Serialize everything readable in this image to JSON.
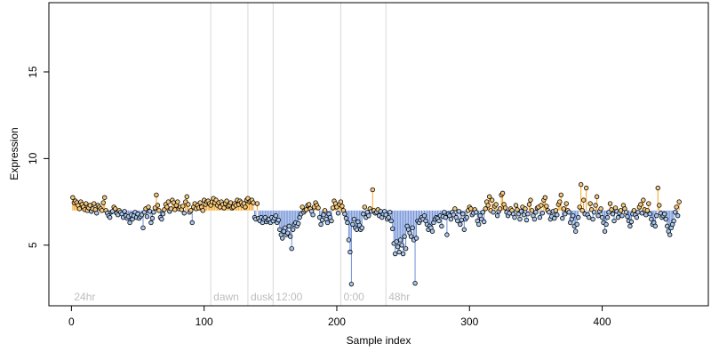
{
  "chart_data": {
    "type": "scatter",
    "title": "",
    "xlabel": "Sample index",
    "ylabel": "Expression",
    "xlim": [
      -17,
      480
    ],
    "ylim": [
      1.5,
      19.0
    ],
    "x_ticks": [
      0,
      100,
      200,
      300,
      400
    ],
    "y_ticks": [
      5,
      10,
      15
    ],
    "grid": false,
    "legend": "none",
    "baseline": 7.0,
    "colors": {
      "up_line": "#f5a623",
      "down_line": "#6f8fd6",
      "point_up": "#f7c97e",
      "point_down": "#a9c7ee",
      "point_edge": "#000000",
      "region_line": "#d9d9d9",
      "region_label": "#bdbdbd"
    },
    "regions": [
      {
        "x": 0,
        "label": "24hr"
      },
      {
        "x": 105,
        "label": "dawn"
      },
      {
        "x": 133,
        "label": "dusk"
      },
      {
        "x": 152,
        "label": "12:00"
      },
      {
        "x": 203,
        "label": "0:00"
      },
      {
        "x": 237,
        "label": "48hr"
      }
    ],
    "series": [
      {
        "values": [
          7.75,
          7.45,
          7.55,
          7.45,
          7.3,
          7.1,
          7.5,
          7.35,
          7.2,
          7.05,
          7.4,
          7.0,
          7.15,
          7.3,
          6.95,
          7.1,
          7.4,
          7.05,
          6.85,
          7.3,
          7.2,
          7.1,
          7.0,
          7.45,
          7.75,
          7.0,
          6.85,
          6.7,
          6.6,
          6.9,
          6.95,
          7.2,
          7.1,
          6.85,
          6.75,
          7.0,
          6.9,
          6.8,
          6.6,
          6.95,
          6.7,
          6.55,
          6.65,
          6.3,
          6.75,
          6.5,
          6.7,
          6.9,
          6.6,
          6.8,
          6.55,
          6.65,
          6.75,
          6.0,
          6.9,
          7.1,
          6.65,
          7.2,
          6.95,
          6.3,
          6.55,
          6.9,
          7.15,
          7.9,
          7.3,
          7.0,
          6.6,
          6.5,
          6.8,
          7.05,
          7.35,
          7.2,
          7.5,
          6.95,
          7.1,
          7.6,
          7.45,
          7.05,
          7.3,
          7.5,
          7.1,
          7.2,
          7.05,
          7.25,
          6.85,
          7.5,
          7.8,
          7.35,
          6.9,
          7.0,
          6.3,
          7.2,
          7.4,
          7.1,
          7.3,
          7.15,
          7.45,
          7.2,
          7.0,
          7.6,
          7.35,
          7.5,
          7.55,
          7.4,
          7.3,
          7.5,
          7.7,
          7.45,
          7.6,
          7.3,
          7.45,
          7.2,
          7.5,
          7.35,
          7.15,
          7.4,
          7.55,
          7.25,
          7.3,
          7.45,
          7.15,
          7.2,
          7.4,
          7.3,
          7.6,
          7.35,
          7.55,
          7.45,
          7.3,
          7.4,
          7.2,
          7.6,
          7.7,
          7.5,
          7.55,
          7.6,
          7.45,
          6.6,
          6.5,
          7.4,
          6.55,
          6.4,
          6.6,
          6.3,
          6.5,
          6.6,
          6.35,
          6.45,
          6.5,
          6.3,
          6.6,
          6.4,
          6.55,
          6.7,
          6.3,
          6.45,
          5.9,
          5.6,
          5.4,
          5.8,
          6.0,
          5.6,
          5.7,
          6.1,
          5.5,
          4.8,
          5.9,
          6.2,
          6.3,
          6.1,
          6.25,
          6.6,
          6.8,
          7.2,
          6.9,
          7.0,
          7.05,
          7.3,
          7.35,
          7.1,
          6.95,
          6.75,
          7.2,
          7.45,
          7.3,
          7.15,
          6.6,
          6.2,
          6.45,
          6.75,
          7.0,
          6.5,
          6.3,
          6.8,
          6.6,
          6.4,
          7.15,
          7.55,
          7.4,
          7.2,
          6.85,
          7.35,
          7.5,
          7.25,
          7.0,
          6.8,
          6.55,
          6.3,
          5.3,
          4.6,
          2.75,
          6.2,
          6.5,
          6.0,
          5.9,
          6.35,
          6.15,
          5.9,
          6.0,
          6.8,
          7.2,
          6.6,
          6.9,
          6.7,
          7.1,
          6.95,
          8.2,
          7.0,
          6.85,
          6.9,
          7.05,
          6.7,
          6.95,
          6.6,
          6.8,
          6.95,
          6.75,
          6.5,
          6.6,
          6.9,
          6.4,
          5.95,
          5.1,
          4.5,
          5.2,
          4.9,
          4.6,
          5.3,
          5.0,
          4.5,
          5.5,
          4.8,
          6.1,
          5.9,
          5.7,
          5.5,
          6.0,
          5.3,
          2.8,
          5.4,
          6.4,
          6.3,
          6.45,
          6.6,
          6.5,
          6.7,
          6.4,
          6.2,
          5.9,
          6.1,
          6.0,
          5.8,
          6.3,
          6.5,
          6.6,
          6.55,
          6.4,
          6.7,
          6.1,
          6.65,
          6.9,
          6.6,
          5.6,
          6.8,
          6.7,
          6.5,
          6.9,
          6.75,
          7.1,
          6.6,
          6.4,
          6.95,
          6.2,
          6.45,
          6.8,
          5.9,
          6.5,
          6.6,
          7.0,
          7.2,
          7.1,
          6.75,
          6.85,
          7.05,
          6.9,
          6.4,
          6.2,
          6.7,
          6.5,
          6.9,
          6.35,
          7.1,
          7.5,
          7.3,
          7.8,
          7.0,
          7.6,
          6.9,
          7.25,
          7.35,
          6.7,
          6.95,
          7.1,
          7.9,
          8.0,
          7.35,
          7.15,
          6.9,
          6.7,
          6.85,
          7.1,
          7.0,
          6.8,
          6.6,
          7.3,
          7.05,
          6.8,
          6.5,
          6.95,
          7.2,
          6.75,
          7.1,
          6.45,
          6.8,
          7.35,
          7.6,
          7.0,
          6.7,
          6.5,
          6.9,
          7.15,
          7.2,
          6.6,
          7.3,
          6.85,
          7.6,
          7.75,
          7.25,
          7.0,
          6.9,
          6.5,
          6.65,
          6.95,
          6.55,
          7.0,
          6.75,
          7.35,
          7.5,
          7.9,
          6.55,
          7.1,
          6.8,
          7.4,
          7.0,
          6.9,
          6.3,
          6.5,
          6.7,
          6.1,
          5.8,
          6.2,
          6.6,
          7.2,
          8.5,
          7.0,
          7.6,
          6.8,
          8.3,
          6.75,
          6.6,
          7.4,
          7.05,
          6.5,
          6.9,
          7.3,
          7.8,
          6.7,
          6.95,
          7.1,
          6.6,
          6.3,
          5.8,
          6.2,
          6.6,
          6.9,
          7.4,
          7.05,
          6.8,
          6.4,
          7.15,
          6.95,
          6.6,
          6.85,
          7.0,
          6.7,
          7.3,
          7.1,
          6.9,
          6.65,
          6.4,
          6.1,
          6.35,
          6.8,
          7.0,
          6.75,
          6.6,
          6.9,
          7.2,
          7.35,
          6.85,
          7.6,
          7.05,
          6.75,
          7.0,
          7.4,
          6.8,
          6.5,
          6.2,
          6.3,
          6.1,
          6.7,
          8.3,
          7.3,
          6.85,
          6.6,
          6.7,
          6.8,
          6.5,
          6.1,
          5.8,
          5.6,
          6.0,
          6.2,
          6.4,
          6.9,
          7.2,
          6.7,
          7.5
        ]
      }
    ]
  }
}
